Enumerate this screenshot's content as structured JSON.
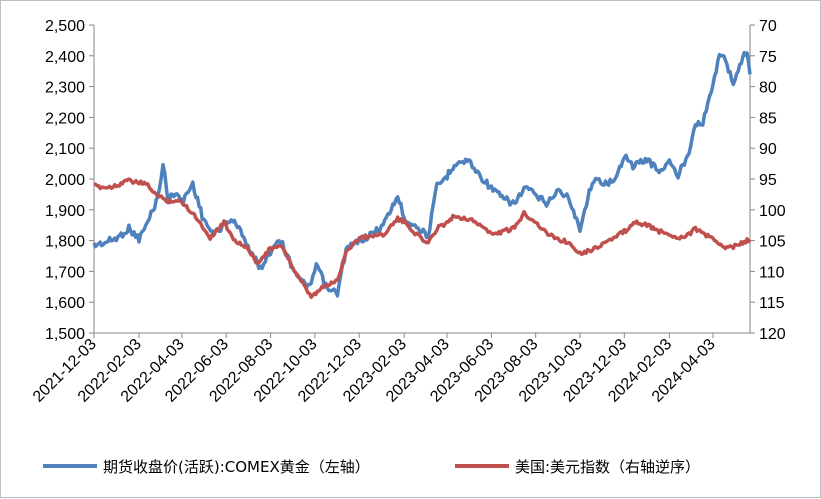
{
  "chart_data": {
    "type": "line",
    "title": "",
    "xlabel": "",
    "ylabel_left": "",
    "ylabel_right": "",
    "legend_position": "bottom",
    "grid": false,
    "x_ticks": [
      "2021-12-03",
      "2022-02-03",
      "2022-04-03",
      "2022-06-03",
      "2022-08-03",
      "2022-10-03",
      "2022-12-03",
      "2023-02-03",
      "2023-04-03",
      "2023-06-03",
      "2023-08-03",
      "2023-10-03",
      "2023-12-03",
      "2024-02-03",
      "2024-04-03"
    ],
    "x_range": [
      "2021-12-03",
      "2024-05-24"
    ],
    "left_axis": {
      "range": [
        1500,
        2500
      ],
      "ticks": [
        "1,500",
        "1,600",
        "1,700",
        "1,800",
        "1,900",
        "2,000",
        "2,100",
        "2,200",
        "2,300",
        "2,400",
        "2,500"
      ]
    },
    "right_axis": {
      "range": [
        70,
        120
      ],
      "reversed": true,
      "ticks": [
        "70",
        "75",
        "80",
        "85",
        "90",
        "95",
        "100",
        "105",
        "110",
        "115",
        "120"
      ]
    },
    "series": [
      {
        "name": "期货收盘价(活跃):COMEX黄金（左轴）",
        "axis": "left",
        "color": "#4f81bd",
        "points": [
          [
            "2021-12-03",
            1785
          ],
          [
            "2021-12-20",
            1795
          ],
          [
            "2022-01-05",
            1810
          ],
          [
            "2022-01-20",
            1840
          ],
          [
            "2022-02-03",
            1805
          ],
          [
            "2022-02-15",
            1860
          ],
          [
            "2022-03-01",
            1940
          ],
          [
            "2022-03-08",
            2050
          ],
          [
            "2022-03-15",
            1930
          ],
          [
            "2022-03-25",
            1960
          ],
          [
            "2022-04-03",
            1925
          ],
          [
            "2022-04-18",
            1985
          ],
          [
            "2022-05-01",
            1880
          ],
          [
            "2022-05-15",
            1820
          ],
          [
            "2022-05-31",
            1850
          ],
          [
            "2022-06-10",
            1870
          ],
          [
            "2022-06-25",
            1825
          ],
          [
            "2022-07-05",
            1770
          ],
          [
            "2022-07-20",
            1710
          ],
          [
            "2022-08-03",
            1765
          ],
          [
            "2022-08-15",
            1810
          ],
          [
            "2022-08-31",
            1725
          ],
          [
            "2022-09-15",
            1665
          ],
          [
            "2022-09-28",
            1650
          ],
          [
            "2022-10-05",
            1725
          ],
          [
            "2022-10-20",
            1640
          ],
          [
            "2022-11-03",
            1630
          ],
          [
            "2022-11-15",
            1770
          ],
          [
            "2022-12-03",
            1800
          ],
          [
            "2022-12-20",
            1820
          ],
          [
            "2023-01-05",
            1850
          ],
          [
            "2023-01-25",
            1945
          ],
          [
            "2023-02-03",
            1875
          ],
          [
            "2023-02-20",
            1845
          ],
          [
            "2023-03-08",
            1815
          ],
          [
            "2023-03-20",
            1975
          ],
          [
            "2023-04-03",
            2010
          ],
          [
            "2023-04-13",
            2050
          ],
          [
            "2023-05-03",
            2060
          ],
          [
            "2023-05-15",
            2020
          ],
          [
            "2023-06-03",
            1970
          ],
          [
            "2023-06-20",
            1935
          ],
          [
            "2023-07-05",
            1920
          ],
          [
            "2023-07-20",
            1975
          ],
          [
            "2023-08-03",
            1945
          ],
          [
            "2023-08-20",
            1920
          ],
          [
            "2023-09-01",
            1965
          ],
          [
            "2023-09-15",
            1945
          ],
          [
            "2023-10-03",
            1840
          ],
          [
            "2023-10-20",
            1995
          ],
          [
            "2023-11-03",
            1990
          ],
          [
            "2023-11-20",
            1990
          ],
          [
            "2023-12-03",
            2080
          ],
          [
            "2023-12-15",
            2040
          ],
          [
            "2024-01-03",
            2065
          ],
          [
            "2024-01-20",
            2025
          ],
          [
            "2024-02-03",
            2055
          ],
          [
            "2024-02-15",
            2010
          ],
          [
            "2024-03-01",
            2090
          ],
          [
            "2024-03-10",
            2185
          ],
          [
            "2024-03-20",
            2180
          ],
          [
            "2024-04-03",
            2310
          ],
          [
            "2024-04-12",
            2400
          ],
          [
            "2024-04-20",
            2390
          ],
          [
            "2024-05-01",
            2310
          ],
          [
            "2024-05-10",
            2370
          ],
          [
            "2024-05-20",
            2420
          ],
          [
            "2024-05-24",
            2340
          ]
        ]
      },
      {
        "name": "美国:美元指数（右轴逆序）",
        "axis": "right",
        "color": "#c0504d",
        "points": [
          [
            "2021-12-03",
            96.1
          ],
          [
            "2021-12-20",
            96.4
          ],
          [
            "2022-01-05",
            96.0
          ],
          [
            "2022-01-15",
            95.2
          ],
          [
            "2022-02-03",
            95.6
          ],
          [
            "2022-02-15",
            96.0
          ],
          [
            "2022-03-01",
            97.8
          ],
          [
            "2022-03-15",
            98.5
          ],
          [
            "2022-04-03",
            98.7
          ],
          [
            "2022-04-20",
            100.8
          ],
          [
            "2022-05-12",
            104.5
          ],
          [
            "2022-05-31",
            102.0
          ],
          [
            "2022-06-15",
            105.0
          ],
          [
            "2022-07-05",
            106.5
          ],
          [
            "2022-07-14",
            108.7
          ],
          [
            "2022-08-03",
            106.3
          ],
          [
            "2022-08-20",
            106.0
          ],
          [
            "2022-09-05",
            110.0
          ],
          [
            "2022-09-28",
            114.2
          ],
          [
            "2022-10-15",
            112.5
          ],
          [
            "2022-11-03",
            111.5
          ],
          [
            "2022-11-15",
            106.7
          ],
          [
            "2022-12-03",
            104.6
          ],
          [
            "2022-12-20",
            104.2
          ],
          [
            "2023-01-05",
            104.0
          ],
          [
            "2023-01-25",
            101.5
          ],
          [
            "2023-02-03",
            102.0
          ],
          [
            "2023-02-20",
            104.0
          ],
          [
            "2023-03-08",
            105.5
          ],
          [
            "2023-03-20",
            103.0
          ],
          [
            "2023-04-03",
            102.0
          ],
          [
            "2023-04-13",
            101.0
          ],
          [
            "2023-05-03",
            101.5
          ],
          [
            "2023-05-20",
            102.5
          ],
          [
            "2023-06-03",
            104.0
          ],
          [
            "2023-06-20",
            103.5
          ],
          [
            "2023-07-05",
            103.0
          ],
          [
            "2023-07-18",
            100.5
          ],
          [
            "2023-08-03",
            102.0
          ],
          [
            "2023-08-20",
            104.0
          ],
          [
            "2023-09-05",
            104.8
          ],
          [
            "2023-09-20",
            105.5
          ],
          [
            "2023-10-03",
            107.0
          ],
          [
            "2023-10-20",
            106.5
          ],
          [
            "2023-11-03",
            105.5
          ],
          [
            "2023-11-20",
            104.5
          ],
          [
            "2023-12-03",
            103.5
          ],
          [
            "2023-12-20",
            102.0
          ],
          [
            "2024-01-03",
            102.5
          ],
          [
            "2024-01-20",
            103.5
          ],
          [
            "2024-02-03",
            104.0
          ],
          [
            "2024-02-15",
            104.5
          ],
          [
            "2024-03-01",
            104.0
          ],
          [
            "2024-03-10",
            103.0
          ],
          [
            "2024-03-20",
            104.0
          ],
          [
            "2024-04-03",
            104.5
          ],
          [
            "2024-04-16",
            106.2
          ],
          [
            "2024-05-01",
            106.0
          ],
          [
            "2024-05-10",
            105.5
          ],
          [
            "2024-05-20",
            105.0
          ],
          [
            "2024-05-24",
            104.8
          ]
        ]
      }
    ]
  }
}
